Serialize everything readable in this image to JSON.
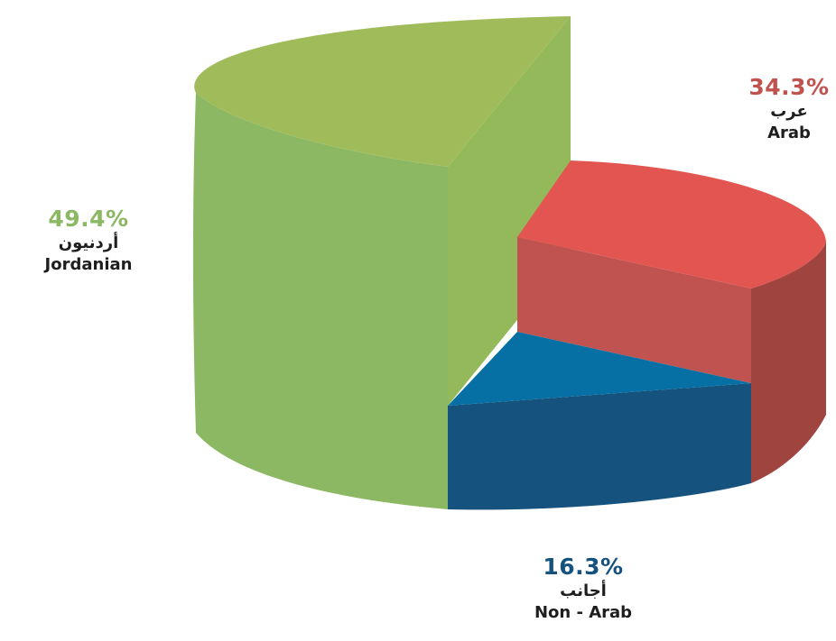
{
  "chart_data": {
    "type": "pie",
    "style": "3d-exploded",
    "slices": [
      {
        "key": "jordanian",
        "value": 49.4,
        "percent_label": "49.4%",
        "label_ar": "أردنيون",
        "label_en": "Jordanian",
        "color": "#8cb864",
        "color_top": "#a0bc5a"
      },
      {
        "key": "arab",
        "value": 34.3,
        "percent_label": "34.3%",
        "label_ar": "عرب",
        "label_en": "Arab",
        "color": "#c0534f",
        "color_top": "#e35551"
      },
      {
        "key": "non_arab",
        "value": 16.3,
        "percent_label": "16.3%",
        "label_ar": "أجانب",
        "label_en": "Non - Arab",
        "color": "#15527e",
        "color_top": "#0670a4"
      }
    ]
  }
}
